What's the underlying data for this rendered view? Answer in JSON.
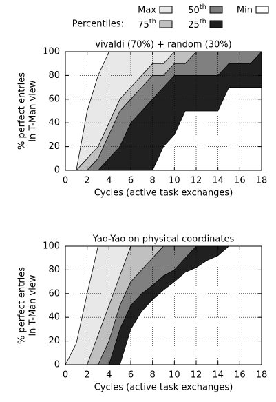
{
  "legend_label": "Percentiles:",
  "chart_data": [
    {
      "type": "percentile_area",
      "title": "vivaldi (70%) + random (30%)",
      "xlabel": "Cycles (active task exchanges)",
      "ylabel": [
        "% perfect entries",
        "in T-Man view"
      ],
      "x": [
        0,
        1,
        2,
        3,
        4,
        5,
        6,
        7,
        8,
        9,
        10,
        11,
        12,
        13,
        14,
        15,
        16,
        17,
        18
      ],
      "xlim": [
        0,
        18
      ],
      "xticks": [
        0,
        2,
        4,
        6,
        8,
        10,
        12,
        14,
        16,
        18
      ],
      "ylim": [
        0,
        100
      ],
      "yticks": [
        0,
        20,
        40,
        60,
        80,
        100
      ],
      "grid": true,
      "series": [
        {
          "name": "Max",
          "color": "#e8e8e8",
          "values": [
            0,
            0,
            50,
            80,
            100,
            100,
            100,
            100,
            100,
            100,
            100,
            100,
            100,
            100,
            100,
            100,
            100,
            100,
            100
          ]
        },
        {
          "name": "75th",
          "color": "#c0c0c0",
          "values": [
            0,
            0,
            10,
            20,
            40,
            60,
            70,
            80,
            90,
            90,
            100,
            100,
            100,
            100,
            100,
            100,
            100,
            100,
            100
          ]
        },
        {
          "name": "50th",
          "color": "#808080",
          "values": [
            0,
            0,
            0,
            10,
            30,
            50,
            60,
            70,
            80,
            80,
            90,
            90,
            100,
            100,
            100,
            100,
            100,
            100,
            100
          ]
        },
        {
          "name": "25th",
          "color": "#202020",
          "values": [
            0,
            0,
            0,
            0,
            10,
            20,
            40,
            50,
            60,
            70,
            80,
            80,
            80,
            80,
            80,
            90,
            90,
            90,
            100
          ]
        },
        {
          "name": "Min",
          "color": "#ffffff",
          "values": [
            0,
            0,
            0,
            0,
            0,
            0,
            0,
            0,
            0,
            20,
            30,
            50,
            50,
            50,
            50,
            70,
            70,
            70,
            70
          ]
        }
      ]
    },
    {
      "type": "percentile_area",
      "title": "Yao-Yao on physical coordinates",
      "xlabel": "Cycles (active task exchanges)",
      "ylabel": [
        "% perfect entries",
        "in T-Man view"
      ],
      "x": [
        0,
        1,
        2,
        3,
        4,
        5,
        6,
        7,
        8,
        9,
        10,
        11,
        12,
        13,
        14,
        15,
        16,
        17,
        18
      ],
      "xlim": [
        0,
        18
      ],
      "xticks": [
        0,
        2,
        4,
        6,
        8,
        10,
        12,
        14,
        16,
        18
      ],
      "ylim": [
        0,
        100
      ],
      "yticks": [
        0,
        20,
        40,
        60,
        80,
        100
      ],
      "grid": true,
      "series": [
        {
          "color": "#e8e8e8",
          "values": [
            0,
            18,
            60,
            100,
            100,
            100,
            100,
            100,
            100,
            100,
            100,
            100,
            100,
            100,
            100,
            100,
            100,
            100,
            100
          ]
        },
        {
          "color": "#c0c0c0",
          "values": [
            0,
            0,
            0,
            25,
            50,
            75,
            100,
            100,
            100,
            100,
            100,
            100,
            100,
            100,
            100,
            100,
            100,
            100,
            100
          ]
        },
        {
          "color": "#808080",
          "values": [
            0,
            0,
            0,
            0,
            20,
            50,
            70,
            80,
            90,
            100,
            100,
            100,
            100,
            100,
            100,
            100,
            100,
            100,
            100
          ]
        },
        {
          "color": "#202020",
          "values": [
            0,
            0,
            0,
            0,
            0,
            30,
            50,
            60,
            67,
            75,
            80,
            90,
            100,
            100,
            100,
            100,
            100,
            100,
            100
          ]
        },
        {
          "color": "#ffffff",
          "values": [
            0,
            0,
            0,
            0,
            0,
            0,
            30,
            45,
            55,
            63,
            70,
            78,
            82,
            88,
            92,
            100,
            100,
            100,
            100
          ]
        }
      ]
    }
  ]
}
